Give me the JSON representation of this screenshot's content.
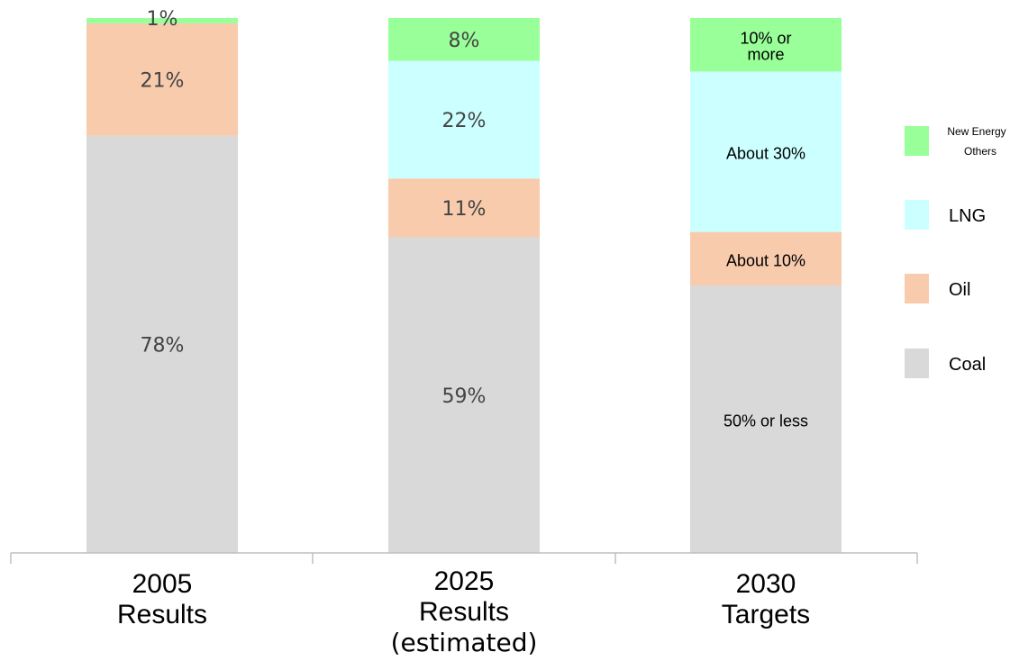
{
  "chart_data": {
    "type": "bar",
    "stacked": true,
    "categories": [
      {
        "lines": [
          "2005",
          "Results"
        ]
      },
      {
        "lines": [
          "2025",
          "Results",
          "(estimated)"
        ]
      },
      {
        "lines": [
          "2030",
          "Targets"
        ]
      }
    ],
    "series": [
      {
        "name": "Coal",
        "color": "#d9d9d9",
        "values": [
          78,
          59,
          50
        ],
        "labels": [
          "78%",
          "59%",
          "50% or less"
        ]
      },
      {
        "name": "Oil",
        "color": "#f8cbad",
        "values": [
          21,
          11,
          10
        ],
        "labels": [
          "21%",
          "11%",
          "About 10%"
        ]
      },
      {
        "name": "LNG",
        "color": "#ccffff",
        "values": [
          0,
          22,
          30
        ],
        "labels": [
          "",
          "22%",
          "About 30%"
        ]
      },
      {
        "name": "New Energy Others",
        "color": "#99ff99",
        "values": [
          1,
          8,
          10
        ],
        "labels": [
          "1%",
          "8%",
          "10% or more"
        ]
      }
    ],
    "ylim": [
      0,
      100
    ],
    "legend": {
      "position": "right",
      "entries": [
        {
          "label": "New Energy",
          "label2": "Others",
          "color": "#99ff99"
        },
        {
          "label": "LNG",
          "color": "#ccffff"
        },
        {
          "label": "Oil",
          "color": "#f8cbad"
        },
        {
          "label": "Coal",
          "color": "#d9d9d9"
        }
      ]
    }
  }
}
